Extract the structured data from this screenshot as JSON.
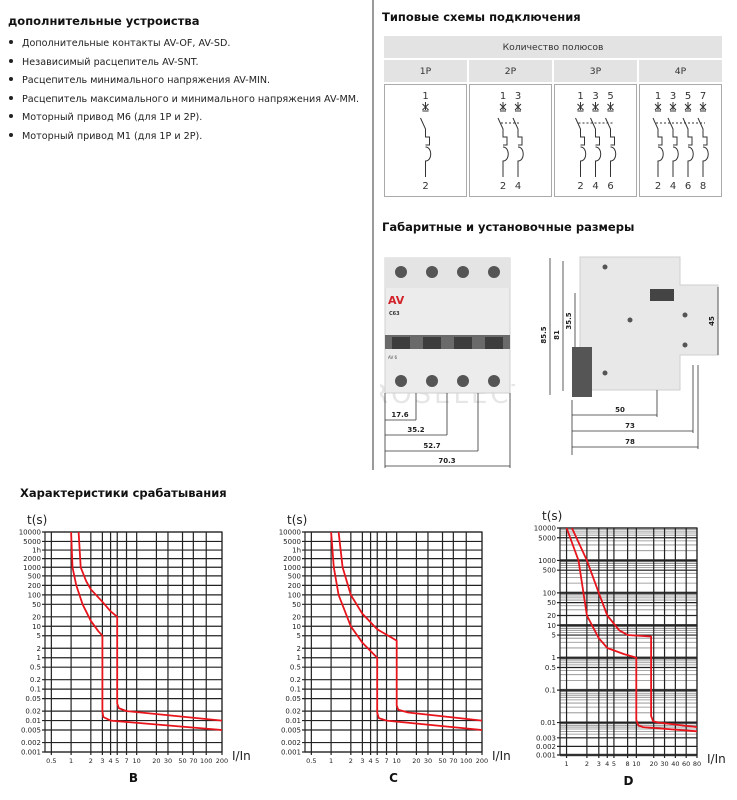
{
  "accessories": {
    "heading": "дополнительные устроиства",
    "items": [
      "Дополнительные  контакты AV-OF, AV-SD.",
      "Независимый расцепитель  AV-SNT.",
      "Расцепитель минимального напряжения AV-MIN.",
      "Расцепитель максимального и минимального напряжения AV-MM.",
      "Моторный привод M6 (для 1P и 2P).",
      "Моторный привод M1 (для 1P и 2P)."
    ]
  },
  "wiring": {
    "heading": "Типовые схемы подключения",
    "group_header": "Количество полюсов",
    "columns": [
      {
        "label": "1P",
        "top": [
          "1"
        ],
        "bottom": [
          "2"
        ]
      },
      {
        "label": "2P",
        "top": [
          "1",
          "3"
        ],
        "bottom": [
          "2",
          "4"
        ]
      },
      {
        "label": "3P",
        "top": [
          "1",
          "3",
          "5"
        ],
        "bottom": [
          "2",
          "4",
          "6"
        ]
      },
      {
        "label": "4P",
        "top": [
          "1",
          "3",
          "5",
          "7"
        ],
        "bottom": [
          "2",
          "4",
          "6",
          "8"
        ]
      }
    ]
  },
  "dimensions": {
    "heading": "Габаритные и установочные размеры",
    "front_widths": [
      "17.6",
      "35.2",
      "52.7",
      "70.3"
    ],
    "side_heights": [
      "85.5",
      "81",
      "35.5",
      "45"
    ],
    "side_depths": [
      "50",
      "73",
      "78"
    ],
    "device_rating": "C63",
    "device_brand": "AV",
    "device_series": "AV 6",
    "watermark": "ROSELECTRIC"
  },
  "tripping": {
    "heading": "Характеристики срабатывания"
  },
  "chart_data": [
    {
      "type": "line",
      "title": "B",
      "ylabel": "t(s)",
      "xlabel": "I/In",
      "xscale": "log",
      "yscale": "log",
      "xlim": [
        0.4,
        200
      ],
      "ylim": [
        0.001,
        10000
      ],
      "grid": true,
      "xticks": [
        0.5,
        1,
        2,
        3,
        4,
        5,
        7,
        10,
        20,
        30,
        50,
        70,
        100,
        200
      ],
      "xticklabels": [
        "0.5",
        "1",
        "2",
        "3",
        "4",
        "5",
        "7",
        "10",
        "20",
        "30",
        "50",
        "70",
        "100",
        "200"
      ],
      "yticks": [
        10000,
        5000,
        3600,
        2000,
        1000,
        500,
        200,
        100,
        50,
        20,
        10,
        5,
        2,
        1,
        0.5,
        0.2,
        0.1,
        0.05,
        0.02,
        0.01,
        0.005,
        0.002,
        0.001
      ],
      "yticklabels": [
        "10000",
        "5000",
        "1h",
        "2000",
        "1000",
        "500",
        "200",
        "100",
        "50",
        "20",
        "10",
        "5",
        "2",
        "1",
        "0.5",
        "0.2",
        "0.1",
        "0.05",
        "0.02",
        "0.01",
        "0.005",
        "0.002",
        "0.001"
      ],
      "color": "#e8141c",
      "series": [
        {
          "x": [
            1,
            1.05,
            1.2,
            1.5,
            2,
            2.6,
            3,
            3,
            3.1,
            4,
            200
          ],
          "y": [
            10000,
            1000,
            200,
            50,
            15,
            7,
            5,
            0.02,
            0.013,
            0.01,
            0.005
          ]
        },
        {
          "x": [
            1.3,
            1.4,
            1.7,
            2,
            3,
            4,
            5,
            5,
            5.3,
            7,
            200
          ],
          "y": [
            10000,
            1000,
            300,
            150,
            60,
            30,
            20,
            0.035,
            0.025,
            0.02,
            0.01
          ]
        }
      ]
    },
    {
      "type": "line",
      "title": "C",
      "ylabel": "t(s)",
      "xlabel": "I/In",
      "xscale": "log",
      "yscale": "log",
      "xlim": [
        0.4,
        200
      ],
      "ylim": [
        0.001,
        10000
      ],
      "grid": true,
      "xticks": [
        0.5,
        1,
        2,
        3,
        4,
        5,
        7,
        10,
        20,
        30,
        50,
        70,
        100,
        200
      ],
      "xticklabels": [
        "0.5",
        "1",
        "2",
        "3",
        "4",
        "5",
        "7",
        "10",
        "20",
        "30",
        "50",
        "70",
        "100",
        "200"
      ],
      "yticks": [
        10000,
        5000,
        3600,
        2000,
        1000,
        500,
        200,
        100,
        50,
        20,
        10,
        5,
        2,
        1,
        0.5,
        0.2,
        0.1,
        0.05,
        0.02,
        0.01,
        0.005,
        0.002,
        0.001
      ],
      "yticklabels": [
        "10000",
        "5000",
        "1h",
        "2000",
        "1000",
        "500",
        "200",
        "100",
        "50",
        "20",
        "10",
        "5",
        "2",
        "1",
        "0.5",
        "0.2",
        "0.1",
        "0.05",
        "0.02",
        "0.01",
        "0.005",
        "0.002",
        "0.001"
      ],
      "color": "#e8141c",
      "series": [
        {
          "x": [
            1,
            1.1,
            1.3,
            2,
            3,
            5,
            5,
            5.3,
            7,
            200
          ],
          "y": [
            10000,
            1000,
            100,
            10,
            3,
            1,
            0.018,
            0.012,
            0.01,
            0.005
          ]
        },
        {
          "x": [
            1.3,
            1.5,
            2,
            3,
            5,
            10,
            10,
            10.6,
            15,
            200
          ],
          "y": [
            10000,
            1000,
            100,
            25,
            8,
            3.5,
            0.03,
            0.022,
            0.018,
            0.01
          ]
        }
      ]
    },
    {
      "type": "line",
      "title": "D",
      "ylabel": "t(s)",
      "xlabel": "I/In",
      "xscale": "log",
      "yscale": "log",
      "xlim": [
        0.8,
        85
      ],
      "ylim": [
        0.001,
        10000
      ],
      "grid": true,
      "xticks": [
        1,
        2,
        3,
        4,
        5,
        8,
        10,
        20,
        30,
        40,
        60,
        80
      ],
      "xticklabels": [
        "1",
        "2",
        "3",
        "4",
        "5",
        "8",
        "10",
        "20",
        "30",
        "40",
        "60",
        "80"
      ],
      "yticks": [
        10000,
        5000,
        1000,
        500,
        100,
        50,
        20,
        10,
        5,
        1,
        0.5,
        0.1,
        0.01,
        0.003,
        0.002,
        0.001
      ],
      "yticklabels": [
        "10000",
        "5000",
        "1000",
        "500",
        "100",
        "50",
        "20",
        "10",
        "5",
        "1",
        "0.5",
        "0.1",
        "0.01",
        "0.003",
        "0.002",
        "0.001"
      ],
      "color": "#e8141c",
      "series": [
        {
          "x": [
            1,
            1.5,
            2,
            3,
            4,
            7,
            10,
            10,
            10.8,
            13,
            80
          ],
          "y": [
            10000,
            1000,
            20,
            4,
            2,
            1.3,
            1,
            0.012,
            0.008,
            0.007,
            0.005
          ]
        },
        {
          "x": [
            1.2,
            2,
            3,
            4,
            6,
            8,
            18,
            18,
            19.5,
            24,
            80
          ],
          "y": [
            10000,
            1000,
            100,
            20,
            7,
            5,
            4.5,
            0.016,
            0.011,
            0.01,
            0.007
          ]
        }
      ]
    }
  ]
}
